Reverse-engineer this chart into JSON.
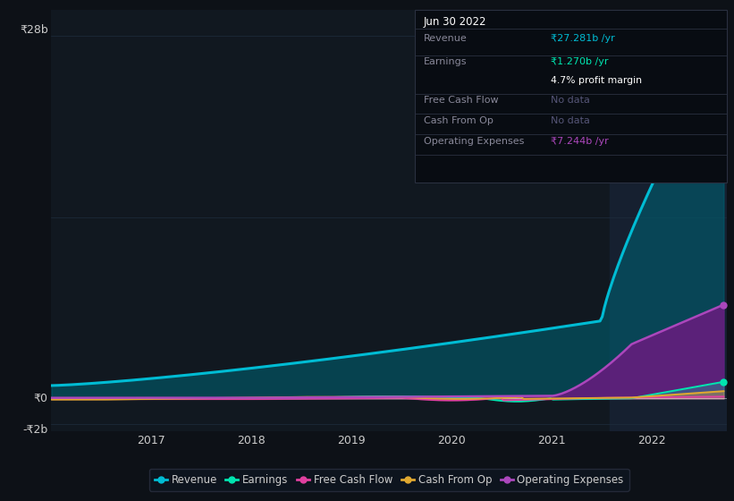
{
  "background_color": "#0d1117",
  "plot_bg_color": "#111820",
  "grid_color": "#1e2d3d",
  "text_color": "#cccccc",
  "highlight_bg": "#162030",
  "series": {
    "revenue": {
      "color": "#00bcd4",
      "fill_color": "#005f70",
      "label": "Revenue"
    },
    "earnings": {
      "color": "#00e5b0",
      "fill_color": "#00e5b0",
      "label": "Earnings"
    },
    "free_cash_flow": {
      "color": "#e040a0",
      "fill_color": "#e040a0",
      "label": "Free Cash Flow"
    },
    "cash_from_op": {
      "color": "#e0a830",
      "fill_color": "#e0a830",
      "label": "Cash From Op"
    },
    "operating_expenses": {
      "color": "#ab47bc",
      "fill_color": "#6a1b80",
      "label": "Operating Expenses"
    }
  },
  "tooltip": {
    "date": "Jun 30 2022",
    "revenue_label": "Revenue",
    "revenue_val": "₹27.281b /yr",
    "revenue_color": "#00bcd4",
    "earnings_label": "Earnings",
    "earnings_val": "₹1.270b /yr",
    "earnings_color": "#00e5b0",
    "profit_margin": "4.7% profit margin",
    "fcf_label": "Free Cash Flow",
    "fcf_val": "No data",
    "cop_label": "Cash From Op",
    "cop_val": "No data",
    "opex_label": "Operating Expenses",
    "opex_val": "₹7.244b /yr",
    "opex_color": "#ab47bc",
    "nodata_color": "#555577",
    "label_color": "#888899",
    "bg_color": "#080c12",
    "border_color": "#2a3040"
  },
  "legend_items": [
    {
      "label": "Revenue",
      "color": "#00bcd4"
    },
    {
      "label": "Earnings",
      "color": "#00e5b0"
    },
    {
      "label": "Free Cash Flow",
      "color": "#e040a0"
    },
    {
      "label": "Cash From Op",
      "color": "#e0a830"
    },
    {
      "label": "Operating Expenses",
      "color": "#ab47bc"
    }
  ],
  "xlim": [
    2016.0,
    2022.75
  ],
  "ylim": [
    -2.5,
    30.0
  ],
  "highlight_start": 2021.58,
  "y_28b_val": 28,
  "y_0_val": 0,
  "y_neg2_val": -2
}
